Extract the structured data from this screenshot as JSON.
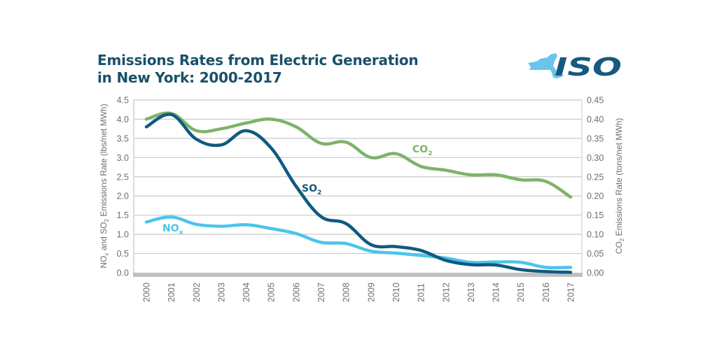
{
  "title": {
    "line1": "Emissions Rates from Electric Generation",
    "line2": "in New York: 2000-2017"
  },
  "logo": {
    "text": "ISO",
    "icon": "new-york-state-map-icon"
  },
  "colors": {
    "title": "#18506b",
    "so2": "#0f5a80",
    "nox": "#4cc4ea",
    "co2": "#7db36a",
    "grid": "#c8c8c8",
    "baseline": "#bfbfbf",
    "tick": "#6d6e70"
  },
  "chart_data": {
    "type": "line",
    "title": "Emissions Rates from Electric Generation in New York: 2000-2017",
    "xlabel": "",
    "ylabel": "NOx and SO2 Emissions Rate (lbs/net MWh)",
    "ylabel_parts": [
      "NO",
      "x",
      " and SO",
      "2",
      " Emissions Rate (lbs/net MWh)"
    ],
    "y2label": "CO2 Emissions Rate (tons/net MWh)",
    "y2label_parts": [
      "CO",
      "2",
      " Emissions Rate (tons/net MWh)"
    ],
    "ylim": [
      0,
      4.5
    ],
    "y2lim": [
      0,
      0.45
    ],
    "yticks": [
      "0.0",
      "0.5",
      "1.0",
      "1.5",
      "2.0",
      "2.5",
      "3.0",
      "3.5",
      "4.0",
      "4.5"
    ],
    "y2ticks": [
      "0.00",
      "0.05",
      "0.10",
      "0.15",
      "0.20",
      "0.25",
      "0.30",
      "0.35",
      "0.40",
      "0.45"
    ],
    "grid": true,
    "legend": "inline labels",
    "x": [
      "2000",
      "2001",
      "2002",
      "2003",
      "2004",
      "2005",
      "2006",
      "2007",
      "2008",
      "2009",
      "2010",
      "2011",
      "2012",
      "2013",
      "2014",
      "2015",
      "2016",
      "2017"
    ],
    "series": [
      {
        "name": "SO2",
        "label_main": "SO",
        "label_sub": "2",
        "axis": "left",
        "values": [
          3.8,
          4.12,
          3.48,
          3.33,
          3.7,
          3.25,
          2.25,
          1.46,
          1.28,
          0.73,
          0.68,
          0.58,
          0.32,
          0.21,
          0.2,
          0.08,
          0.03,
          0.01
        ]
      },
      {
        "name": "NOx",
        "label_main": "NO",
        "label_sub": "x",
        "axis": "left",
        "values": [
          1.32,
          1.45,
          1.26,
          1.21,
          1.25,
          1.15,
          1.02,
          0.79,
          0.76,
          0.56,
          0.51,
          0.45,
          0.38,
          0.27,
          0.28,
          0.27,
          0.14,
          0.14
        ]
      },
      {
        "name": "CO2",
        "label_main": "CO",
        "label_sub": "2",
        "axis": "right",
        "values": [
          0.4,
          0.415,
          0.37,
          0.375,
          0.39,
          0.4,
          0.38,
          0.337,
          0.34,
          0.3,
          0.31,
          0.277,
          0.267,
          0.255,
          0.255,
          0.242,
          0.238,
          0.197
        ]
      }
    ]
  }
}
